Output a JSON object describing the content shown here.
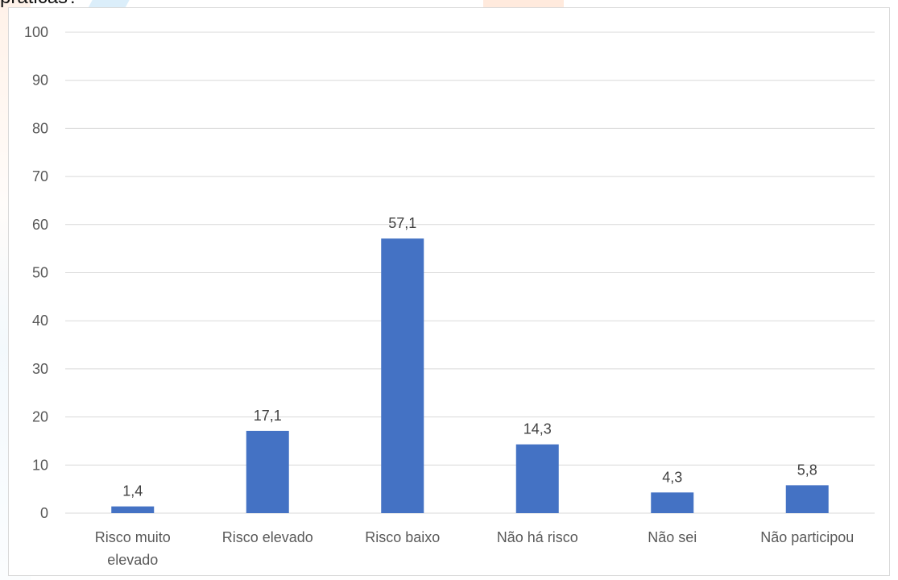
{
  "header": {
    "question_fragment": "práticas?"
  },
  "chart_data": {
    "type": "bar",
    "categories": [
      "Risco muito elevado",
      "Risco elevado",
      "Risco baixo",
      "Não há risco",
      "Não sei",
      "Não participou"
    ],
    "category_lines": [
      [
        "Risco muito",
        "elevado"
      ],
      [
        "Risco elevado"
      ],
      [
        "Risco baixo"
      ],
      [
        "Não há risco"
      ],
      [
        "Não sei"
      ],
      [
        "Não participou"
      ]
    ],
    "values": [
      1.4,
      17.1,
      57.1,
      14.3,
      4.3,
      5.8
    ],
    "data_labels": [
      "1,4",
      "17,1",
      "57,1",
      "14,3",
      "4,3",
      "5,8"
    ],
    "y_ticks": [
      0,
      10,
      20,
      30,
      40,
      50,
      60,
      70,
      80,
      90,
      100
    ],
    "ylim": [
      0,
      100
    ],
    "grid": true,
    "legend": "none",
    "colors": {
      "bar": "#4472C4",
      "grid": "#d9d9d9",
      "axis": "#d9d9d9",
      "text": "#595959"
    }
  }
}
